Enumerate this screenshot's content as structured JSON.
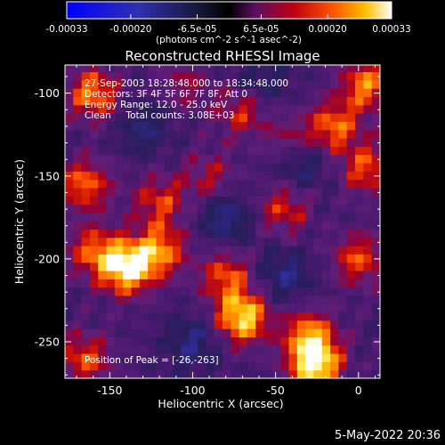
{
  "chart_data": {
    "type": "heatmap",
    "title": "Reconstructed RHESSI Image",
    "xlabel": "Heliocentric X (arcsec)",
    "ylabel": "Heliocentric Y (arcsec)",
    "xlim": [
      -177,
      13
    ],
    "ylim": [
      -272,
      -83
    ],
    "x_ticks": [
      -150,
      -100,
      -50,
      0
    ],
    "y_ticks": [
      -100,
      -150,
      -200,
      -250
    ],
    "colorbar": {
      "ticks": [
        "-0.00033",
        "-0.00020",
        "-6.5e-05",
        "6.5e-05",
        "0.00020",
        "0.00033"
      ],
      "tick_values": [
        -0.00033,
        -0.0002,
        -6.5e-05,
        6.5e-05,
        0.0002,
        0.00033
      ],
      "range": [
        -0.00033,
        0.00033
      ],
      "unit": "(photons cm^-2 s^-1 asec^-2)",
      "colors": [
        "#0000ff",
        "#2828aa",
        "#000000",
        "#6b1a6b",
        "#c00000",
        "#ff5a00",
        "#ffc000",
        "#ffffff"
      ]
    },
    "annotations": [
      "27-Sep-2003 18:28:48.000 to 18:34:48.000",
      "Detectors: 3F 4F 5F 6F 7F 8F, Att 0",
      "Energy Range: 12.0 - 25.0 keV",
      "Clean     Total counts: 3.08E+03"
    ],
    "peak_label": "Position of Peak = [-26,-263]",
    "hot_sources": [
      {
        "x": -140,
        "y": -205,
        "intensity": 0.00033
      },
      {
        "x": -120,
        "y": -195,
        "intensity": 0.00022
      },
      {
        "x": -160,
        "y": -195,
        "intensity": 0.00018
      },
      {
        "x": -70,
        "y": -235,
        "intensity": 0.0003
      },
      {
        "x": -80,
        "y": -210,
        "intensity": 0.00018
      },
      {
        "x": -26,
        "y": -263,
        "intensity": 0.00033
      },
      {
        "x": -30,
        "y": -245,
        "intensity": 0.0002
      },
      {
        "x": -160,
        "y": -100,
        "intensity": 0.00022
      },
      {
        "x": -165,
        "y": -155,
        "intensity": 0.0002
      },
      {
        "x": -165,
        "y": -260,
        "intensity": 0.00018
      },
      {
        "x": -120,
        "y": -165,
        "intensity": 0.00016
      },
      {
        "x": -70,
        "y": -110,
        "intensity": 0.00016
      },
      {
        "x": -45,
        "y": -170,
        "intensity": 0.00015
      },
      {
        "x": -40,
        "y": -130,
        "intensity": 0.00014
      },
      {
        "x": -15,
        "y": -120,
        "intensity": 0.0002
      },
      {
        "x": 5,
        "y": -95,
        "intensity": 0.00022
      },
      {
        "x": 5,
        "y": -145,
        "intensity": 0.00018
      },
      {
        "x": 0,
        "y": -200,
        "intensity": 0.00018
      },
      {
        "x": -90,
        "y": -150,
        "intensity": 0.00012
      },
      {
        "x": -105,
        "y": -95,
        "intensity": 0.0001
      }
    ],
    "cold_sources": [
      {
        "x": -35,
        "y": -140,
        "intensity": -0.00015
      },
      {
        "x": -80,
        "y": -175,
        "intensity": -0.00013
      },
      {
        "x": -100,
        "y": -250,
        "intensity": -0.00012
      },
      {
        "x": -45,
        "y": -210,
        "intensity": -0.00012
      },
      {
        "x": -130,
        "y": -120,
        "intensity": -0.0001
      },
      {
        "x": -60,
        "y": -95,
        "intensity": -0.0001
      }
    ]
  },
  "footer": {
    "date": "5-May-2022 20:36"
  }
}
